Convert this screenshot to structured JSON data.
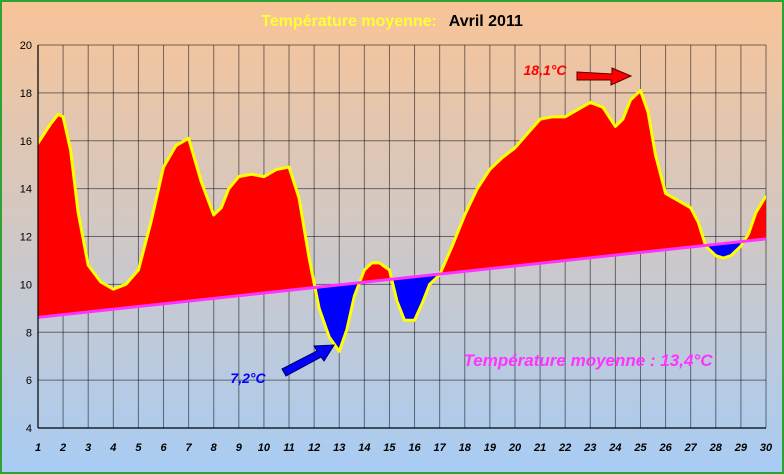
{
  "chart_data": {
    "type": "area",
    "title_part1": "Température moyenne:",
    "title_part2": "Avril 2011",
    "xlabel": "",
    "ylabel": "",
    "ylim": [
      4,
      20
    ],
    "yticks": [
      4,
      6,
      8,
      10,
      12,
      14,
      16,
      18,
      20
    ],
    "xticks": [
      "1",
      "2",
      "3",
      "4",
      "5",
      "6",
      "7",
      "8",
      "9",
      "10",
      "11",
      "12",
      "13",
      "14",
      "15",
      "16",
      "17",
      "18",
      "19",
      "20",
      "21",
      "22",
      "23",
      "24",
      "25",
      "26",
      "27",
      "28",
      "29",
      "30"
    ],
    "grid": true,
    "series": [
      {
        "x": [
          0.8,
          1,
          1.5,
          1.8,
          2,
          2.3,
          2.6,
          3,
          3.5,
          4,
          4.5,
          5,
          5.5,
          6,
          6.5,
          7,
          7.5,
          8,
          8.3,
          8.6,
          9,
          9.5,
          10,
          10.5,
          11,
          11.4,
          11.8,
          12.2,
          12.6,
          13,
          13.3,
          13.6,
          14,
          14.3,
          14.6,
          15,
          15.3,
          15.6,
          16,
          16.3,
          16.6,
          17,
          17.5,
          18,
          18.5,
          19,
          19.5,
          20,
          20.5,
          21,
          21.5,
          22,
          22.5,
          23,
          23.5,
          24,
          24.3,
          24.6,
          25,
          25.3,
          25.6,
          26,
          26.5,
          27,
          27.3,
          27.6,
          28,
          28.3,
          28.6,
          29,
          29.3,
          29.6,
          30
        ],
        "values": [
          15.6,
          15.9,
          16.7,
          17.1,
          17.0,
          15.6,
          13.0,
          10.8,
          10.1,
          9.8,
          10.0,
          10.6,
          12.6,
          14.9,
          15.8,
          16.1,
          14.3,
          12.9,
          13.2,
          14.0,
          14.5,
          14.6,
          14.5,
          14.8,
          14.9,
          13.6,
          11.1,
          9.0,
          7.8,
          7.2,
          8.1,
          9.5,
          10.6,
          10.9,
          10.9,
          10.6,
          9.3,
          8.5,
          8.5,
          9.2,
          10.0,
          10.4,
          11.6,
          12.9,
          14.0,
          14.8,
          15.3,
          15.7,
          16.3,
          16.9,
          17.0,
          17.0,
          17.3,
          17.6,
          17.4,
          16.6,
          16.9,
          17.7,
          18.1,
          17.2,
          15.4,
          13.8,
          13.5,
          13.2,
          12.6,
          11.6,
          11.2,
          11.1,
          11.2,
          11.6,
          12.1,
          13.0,
          13.7
        ]
      },
      {
        "x": [
          0.8,
          30
        ],
        "values": [
          8.6,
          11.9
        ]
      }
    ],
    "colors": {
      "above": "#ff0000",
      "below": "#0000ff",
      "temperature_line": "#ffff00",
      "trend_line": "#ff33ff",
      "max_label": "#ff0000",
      "min_label": "#0000ff",
      "mean_label": "#ff33ff",
      "title_part1": "#ffff33",
      "title_part2": "#000000",
      "axis_numbers": "#000000",
      "bg_top": "#f8c497",
      "bg_bottom": "#a8ccf4",
      "frame": "#2fa332"
    },
    "annotations": {
      "max_label": "18,1°C",
      "min_label": "7,2°C",
      "mean_label": "Température moyenne :  13,4°C",
      "max_day": 25,
      "max_value": 18.1,
      "min_day": 13,
      "min_value": 7.2
    }
  }
}
